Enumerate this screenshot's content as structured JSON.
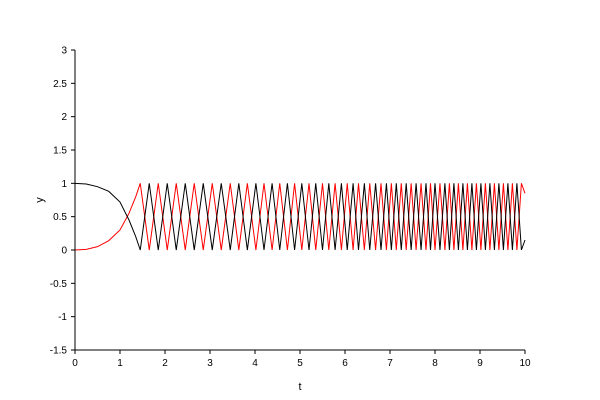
{
  "chart_data": {
    "type": "line",
    "title": "",
    "xlabel": "t",
    "ylabel": "y",
    "xlim": [
      0,
      10
    ],
    "ylim": [
      -1.5,
      3
    ],
    "grid": false,
    "legend": "none",
    "xticks": [
      "0",
      "1",
      "2",
      "3",
      "4",
      "5",
      "6",
      "7",
      "8",
      "9",
      "10"
    ],
    "yticks": [
      "-1.5",
      "-1",
      "-0.5",
      "0",
      "0.5",
      "1",
      "1.5",
      "2",
      "2.5",
      "3"
    ],
    "series": [
      {
        "color": "#ff0000",
        "x": [
          0,
          0.25,
          0.5,
          0.75,
          1,
          1.2,
          1.35,
          1.45,
          1.65,
          1.85,
          2.05,
          2.25,
          2.45,
          2.65,
          2.85,
          3.05,
          3.25,
          3.45,
          3.64,
          3.83,
          4.02,
          4.2,
          4.38,
          4.55,
          4.72,
          4.88,
          5.04,
          5.2,
          5.35,
          5.5,
          5.64,
          5.78,
          5.92,
          6.05,
          6.18,
          6.3,
          6.43,
          6.55,
          6.68,
          6.8,
          6.92,
          7.03,
          7.14,
          7.25,
          7.36,
          7.47,
          7.58,
          7.69,
          7.8,
          7.9,
          8.0,
          8.11,
          8.22,
          8.32,
          8.42,
          8.52,
          8.62,
          8.72,
          8.82,
          8.92,
          9.02,
          9.12,
          9.22,
          9.32,
          9.42,
          9.52,
          9.62,
          9.72,
          9.82,
          9.92,
          10
        ],
        "y": [
          0,
          0.01,
          0.05,
          0.14,
          0.3,
          0.55,
          0.8,
          1,
          0,
          1,
          0,
          1,
          0,
          1,
          0,
          1,
          0,
          1,
          0,
          1,
          0,
          1,
          0,
          1,
          0,
          1,
          0,
          1,
          0,
          1,
          0,
          1,
          0,
          1,
          0,
          1,
          0,
          1,
          0,
          1,
          0,
          1,
          0,
          1,
          0,
          1,
          0,
          1,
          0,
          1,
          0,
          1,
          0,
          1,
          0,
          1,
          0,
          1,
          0,
          1,
          0,
          1,
          0,
          1,
          0,
          1,
          0,
          1,
          0,
          1,
          0.85
        ]
      },
      {
        "color": "#000000",
        "x": [
          0,
          0.25,
          0.5,
          0.75,
          1,
          1.2,
          1.35,
          1.45,
          1.65,
          1.85,
          2.05,
          2.25,
          2.45,
          2.65,
          2.85,
          3.05,
          3.25,
          3.45,
          3.64,
          3.83,
          4.02,
          4.2,
          4.38,
          4.55,
          4.72,
          4.88,
          5.04,
          5.2,
          5.35,
          5.5,
          5.64,
          5.78,
          5.92,
          6.05,
          6.18,
          6.3,
          6.43,
          6.55,
          6.68,
          6.8,
          6.92,
          7.03,
          7.14,
          7.25,
          7.36,
          7.47,
          7.58,
          7.69,
          7.8,
          7.9,
          8.0,
          8.11,
          8.22,
          8.32,
          8.42,
          8.52,
          8.62,
          8.72,
          8.82,
          8.92,
          9.02,
          9.12,
          9.22,
          9.32,
          9.42,
          9.52,
          9.62,
          9.72,
          9.82,
          9.92,
          10
        ],
        "y": [
          1,
          0.99,
          0.95,
          0.88,
          0.72,
          0.45,
          0.2,
          0,
          1,
          0,
          1,
          0,
          1,
          0,
          1,
          0,
          1,
          0,
          1,
          0,
          1,
          0,
          1,
          0,
          1,
          0,
          1,
          0,
          1,
          0,
          1,
          0,
          1,
          0,
          1,
          0,
          1,
          0,
          1,
          0,
          1,
          0,
          1,
          0,
          1,
          0,
          1,
          0,
          1,
          0,
          1,
          0,
          1,
          0,
          1,
          0,
          1,
          0,
          1,
          0,
          1,
          0,
          1,
          0,
          1,
          0,
          1,
          0,
          1,
          0,
          0.15
        ]
      }
    ]
  }
}
